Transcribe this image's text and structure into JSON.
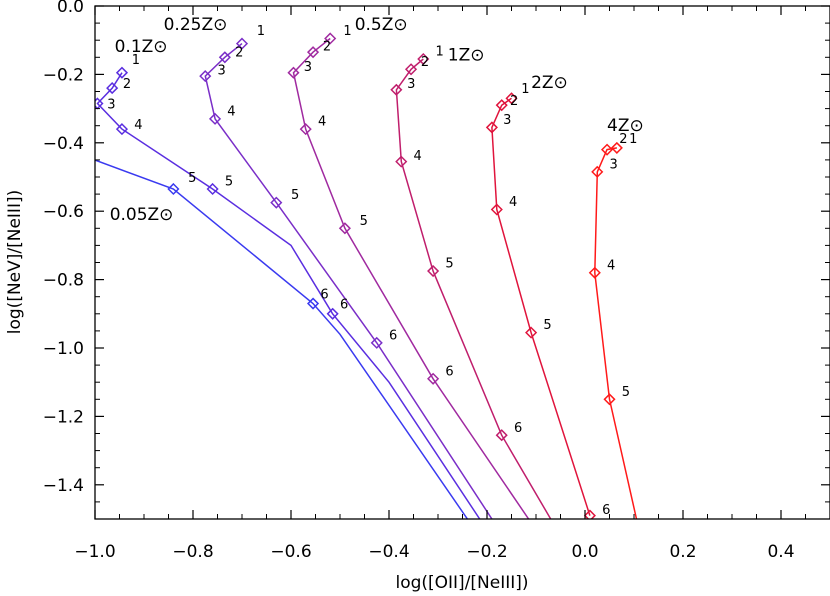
{
  "chart_data": {
    "type": "line",
    "xlabel": "log([OII]/[NeIII])",
    "ylabel": "log([NeV]/[NeIII])",
    "xlim": [
      -1.0,
      0.5
    ],
    "ylim": [
      -1.5,
      0.0
    ],
    "xticks": [
      -1.0,
      -0.8,
      -0.6,
      -0.4,
      -0.2,
      0.0,
      0.2,
      0.4
    ],
    "xtick_labels": [
      "−1.0",
      "−0.8",
      "−0.6",
      "−0.4",
      "−0.2",
      "0.0",
      "0.2",
      "0.4"
    ],
    "yticks": [
      0.0,
      -0.2,
      -0.4,
      -0.6,
      -0.8,
      -1.0,
      -1.2,
      -1.4
    ],
    "ytick_labels": [
      "0.0",
      "−0.2",
      "−0.4",
      "−0.6",
      "−0.8",
      "−1.0",
      "−1.2",
      "−1.4"
    ],
    "series": [
      {
        "name": "0.05Z⊙",
        "color": "#3a3af0",
        "points": [
          [
            -1.02,
            -0.44
          ],
          [
            -0.84,
            -0.535
          ],
          [
            -0.555,
            -0.87
          ],
          [
            -0.5,
            -0.96
          ],
          [
            -0.24,
            -1.5
          ]
        ],
        "markers": [
          [
            -0.84,
            -0.535
          ],
          [
            -0.555,
            -0.87
          ]
        ],
        "labels": [
          {
            "text": "5",
            "x": -0.81,
            "y": -0.515
          },
          {
            "text": "6",
            "x": -0.54,
            "y": -0.855
          }
        ],
        "name_pos": [
          -0.97,
          -0.625
        ]
      },
      {
        "name": "0.1Z⊙",
        "color": "#5a2ee0",
        "points": [
          [
            -0.945,
            -0.195
          ],
          [
            -0.965,
            -0.24
          ],
          [
            -0.995,
            -0.285
          ],
          [
            -0.945,
            -0.36
          ],
          [
            -0.76,
            -0.535
          ],
          [
            -0.6,
            -0.7
          ],
          [
            -0.515,
            -0.9
          ],
          [
            -0.4,
            -1.1
          ],
          [
            -0.215,
            -1.5
          ]
        ],
        "markers": [
          [
            -0.945,
            -0.195
          ],
          [
            -0.965,
            -0.24
          ],
          [
            -0.995,
            -0.285
          ],
          [
            -0.945,
            -0.36
          ],
          [
            -0.76,
            -0.535
          ],
          [
            -0.515,
            -0.9
          ]
        ],
        "labels": [
          {
            "text": "1",
            "x": -0.925,
            "y": -0.17
          },
          {
            "text": "2",
            "x": -0.943,
            "y": -0.24
          },
          {
            "text": "3",
            "x": -0.975,
            "y": -0.3
          },
          {
            "text": "4",
            "x": -0.92,
            "y": -0.36
          },
          {
            "text": "5",
            "x": -0.735,
            "y": -0.525
          },
          {
            "text": "6",
            "x": -0.5,
            "y": -0.885
          }
        ],
        "name_pos": [
          -0.96,
          -0.135
        ]
      },
      {
        "name": "0.25Z⊙",
        "color": "#7a2ec8",
        "points": [
          [
            -0.7,
            -0.11
          ],
          [
            -0.735,
            -0.15
          ],
          [
            -0.775,
            -0.205
          ],
          [
            -0.755,
            -0.33
          ],
          [
            -0.63,
            -0.575
          ],
          [
            -0.425,
            -0.985
          ],
          [
            -0.19,
            -1.5
          ]
        ],
        "markers": [
          [
            -0.7,
            -0.11
          ],
          [
            -0.735,
            -0.15
          ],
          [
            -0.775,
            -0.205
          ],
          [
            -0.755,
            -0.33
          ],
          [
            -0.63,
            -0.575
          ],
          [
            -0.425,
            -0.985
          ]
        ],
        "labels": [
          {
            "text": "1",
            "x": -0.67,
            "y": -0.085
          },
          {
            "text": "2",
            "x": -0.714,
            "y": -0.148
          },
          {
            "text": "3",
            "x": -0.75,
            "y": -0.2
          },
          {
            "text": "4",
            "x": -0.73,
            "y": -0.32
          },
          {
            "text": "5",
            "x": -0.6,
            "y": -0.565
          },
          {
            "text": "6",
            "x": -0.4,
            "y": -0.975
          }
        ],
        "name_pos": [
          -0.86,
          -0.07
        ]
      },
      {
        "name": "0.5Z⊙",
        "color": "#a02aa0",
        "points": [
          [
            -0.52,
            -0.095
          ],
          [
            -0.555,
            -0.135
          ],
          [
            -0.595,
            -0.195
          ],
          [
            -0.57,
            -0.36
          ],
          [
            -0.49,
            -0.65
          ],
          [
            -0.31,
            -1.09
          ],
          [
            -0.115,
            -1.5
          ]
        ],
        "markers": [
          [
            -0.52,
            -0.095
          ],
          [
            -0.555,
            -0.135
          ],
          [
            -0.595,
            -0.195
          ],
          [
            -0.57,
            -0.36
          ],
          [
            -0.49,
            -0.65
          ],
          [
            -0.31,
            -1.09
          ]
        ],
        "labels": [
          {
            "text": "1",
            "x": -0.493,
            "y": -0.085
          },
          {
            "text": "2",
            "x": -0.535,
            "y": -0.13
          },
          {
            "text": "3",
            "x": -0.574,
            "y": -0.19
          },
          {
            "text": "4",
            "x": -0.545,
            "y": -0.35
          },
          {
            "text": "5",
            "x": -0.46,
            "y": -0.64
          },
          {
            "text": "6",
            "x": -0.285,
            "y": -1.08
          }
        ],
        "name_pos": [
          -0.47,
          -0.07
        ]
      },
      {
        "name": "1Z⊙",
        "color": "#c01e6c",
        "points": [
          [
            -0.33,
            -0.155
          ],
          [
            -0.355,
            -0.185
          ],
          [
            -0.385,
            -0.245
          ],
          [
            -0.375,
            -0.455
          ],
          [
            -0.31,
            -0.775
          ],
          [
            -0.17,
            -1.255
          ],
          [
            -0.07,
            -1.5
          ]
        ],
        "markers": [
          [
            -0.33,
            -0.155
          ],
          [
            -0.355,
            -0.185
          ],
          [
            -0.385,
            -0.245
          ],
          [
            -0.375,
            -0.455
          ],
          [
            -0.31,
            -0.775
          ],
          [
            -0.17,
            -1.255
          ]
        ],
        "labels": [
          {
            "text": "1",
            "x": -0.305,
            "y": -0.145
          },
          {
            "text": "2",
            "x": -0.335,
            "y": -0.175
          },
          {
            "text": "3",
            "x": -0.363,
            "y": -0.24
          },
          {
            "text": "4",
            "x": -0.35,
            "y": -0.45
          },
          {
            "text": "5",
            "x": -0.285,
            "y": -0.765
          },
          {
            "text": "6",
            "x": -0.145,
            "y": -1.245
          }
        ],
        "name_pos": [
          -0.28,
          -0.16
        ]
      },
      {
        "name": "2Z⊙",
        "color": "#e0143c",
        "points": [
          [
            -0.15,
            -0.27
          ],
          [
            -0.17,
            -0.29
          ],
          [
            -0.19,
            -0.355
          ],
          [
            -0.18,
            -0.595
          ],
          [
            -0.11,
            -0.955
          ],
          [
            0.01,
            -1.49
          ]
        ],
        "markers": [
          [
            -0.15,
            -0.27
          ],
          [
            -0.17,
            -0.29
          ],
          [
            -0.19,
            -0.355
          ],
          [
            -0.18,
            -0.595
          ],
          [
            -0.11,
            -0.955
          ],
          [
            0.01,
            -1.49
          ]
        ],
        "labels": [
          {
            "text": "1",
            "x": -0.13,
            "y": -0.255
          },
          {
            "text": "2",
            "x": -0.153,
            "y": -0.29
          },
          {
            "text": "3",
            "x": -0.167,
            "y": -0.345
          },
          {
            "text": "4",
            "x": -0.155,
            "y": -0.585
          },
          {
            "text": "5",
            "x": -0.085,
            "y": -0.945
          },
          {
            "text": "6",
            "x": 0.035,
            "y": -1.485
          }
        ],
        "name_pos": [
          -0.11,
          -0.24
        ]
      },
      {
        "name": "4Z⊙",
        "color": "#ff1a1a",
        "points": [
          [
            0.065,
            -0.415
          ],
          [
            0.045,
            -0.42
          ],
          [
            0.025,
            -0.485
          ],
          [
            0.02,
            -0.78
          ],
          [
            0.05,
            -1.15
          ],
          [
            0.105,
            -1.5
          ]
        ],
        "markers": [
          [
            0.065,
            -0.415
          ],
          [
            0.045,
            -0.42
          ],
          [
            0.025,
            -0.485
          ],
          [
            0.02,
            -0.78
          ],
          [
            0.05,
            -1.15
          ]
        ],
        "labels": [
          {
            "text": "1",
            "x": 0.09,
            "y": -0.4
          },
          {
            "text": "2",
            "x": 0.07,
            "y": -0.4
          },
          {
            "text": "3",
            "x": 0.05,
            "y": -0.475
          },
          {
            "text": "4",
            "x": 0.045,
            "y": -0.77
          },
          {
            "text": "5",
            "x": 0.075,
            "y": -1.14
          }
        ],
        "name_pos": [
          0.045,
          -0.365
        ]
      }
    ]
  }
}
